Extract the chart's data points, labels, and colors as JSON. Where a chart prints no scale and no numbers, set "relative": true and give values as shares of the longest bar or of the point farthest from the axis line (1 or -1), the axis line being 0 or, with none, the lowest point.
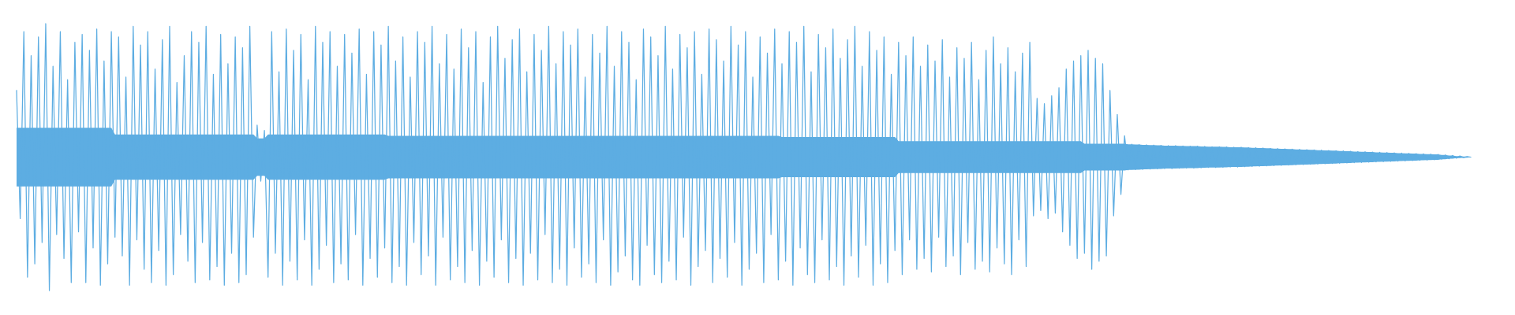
{
  "chart_data": {
    "type": "line",
    "relative": true,
    "categories": [
      null,
      null,
      null,
      null,
      null,
      null,
      null,
      null,
      null,
      null,
      null,
      null,
      null,
      null,
      null,
      null,
      null,
      null,
      null,
      null,
      null,
      null,
      null,
      null,
      null,
      null,
      null,
      null,
      null,
      null,
      null,
      null,
      null,
      null,
      null,
      null,
      null,
      null,
      null,
      null,
      null,
      null,
      null,
      null,
      null,
      null,
      null,
      null,
      null,
      null,
      null,
      null,
      null,
      null,
      null,
      null,
      null,
      null,
      null,
      null,
      null,
      null,
      null,
      null,
      null,
      null,
      null,
      null,
      null,
      null,
      null,
      null,
      null,
      null,
      null,
      null,
      null,
      null,
      null,
      null,
      null,
      null,
      null,
      null,
      null,
      null,
      null,
      null,
      null,
      null,
      null,
      null,
      null,
      null,
      null,
      null,
      null,
      null,
      null,
      null,
      null,
      null,
      null,
      null,
      null,
      null,
      null,
      null,
      null,
      null,
      null,
      null,
      null,
      null,
      null,
      null,
      null,
      null,
      null,
      null,
      null,
      null,
      null,
      null,
      null,
      null,
      null,
      null,
      null,
      null,
      null,
      null,
      null,
      null,
      null,
      null,
      null,
      null,
      null,
      null,
      null,
      null,
      null,
      null,
      null,
      null,
      null,
      null,
      null,
      null,
      null,
      null,
      null,
      null,
      null,
      null,
      null,
      null,
      null,
      null,
      null,
      null,
      null,
      null,
      null,
      null,
      null,
      null,
      null,
      null,
      null,
      null,
      null,
      null,
      null,
      null,
      null,
      null,
      null,
      null,
      null,
      null,
      null,
      null,
      null,
      null,
      null,
      null,
      null,
      null,
      null,
      null,
      null,
      null,
      null,
      null,
      null,
      null,
      null,
      null,
      null,
      null,
      null,
      null,
      null,
      null,
      null,
      null,
      null,
      null,
      null,
      null,
      null,
      null,
      null,
      null,
      null,
      null,
      null,
      null,
      null,
      null,
      null,
      null,
      null,
      null,
      null,
      null,
      null,
      null,
      null,
      null,
      null,
      null,
      null,
      null,
      null,
      null,
      null,
      null,
      null,
      null,
      null,
      null,
      null,
      null,
      null,
      null,
      null,
      null,
      null,
      null,
      null,
      null,
      null,
      null,
      null,
      null,
      null,
      null,
      null,
      null,
      null,
      null,
      null,
      null,
      null,
      null,
      null,
      null,
      null,
      null,
      null,
      null,
      null,
      null,
      null,
      null,
      null,
      null,
      null,
      null,
      null,
      null,
      null,
      null,
      null,
      null,
      null,
      null,
      null,
      null,
      null,
      null,
      null,
      null,
      null,
      null,
      null,
      null,
      null,
      null,
      null,
      null,
      null,
      null,
      null,
      null,
      null,
      null,
      null,
      null,
      null,
      null,
      null,
      null,
      null,
      null,
      null,
      null,
      null,
      null,
      null,
      null,
      null,
      null,
      null,
      null,
      null,
      null,
      null,
      null,
      null,
      null,
      null,
      null,
      null,
      null,
      null,
      null,
      null,
      null,
      null,
      null,
      null,
      null,
      null,
      null,
      null,
      null,
      null,
      null,
      null,
      null,
      null,
      null,
      null,
      null,
      null,
      null,
      null,
      null,
      null,
      null,
      null,
      null,
      null,
      null,
      null,
      null,
      null,
      null,
      null,
      null,
      null,
      null,
      null,
      null,
      null,
      null,
      null,
      null,
      null,
      null,
      null,
      null,
      null,
      null,
      null,
      null,
      null,
      null,
      null,
      null,
      null,
      null,
      null,
      null,
      null,
      null
    ],
    "series": [
      {
        "color": "#5dade2",
        "values": [
          0.75,
          0.27,
          0.97,
          0.05,
          0.88,
          0.1,
          0.95,
          0.18,
          1.0,
          0.0,
          0.84,
          0.21,
          0.97,
          0.12,
          0.79,
          0.03,
          0.93,
          0.22,
          0.96,
          0.03,
          0.9,
          0.16,
          0.98,
          0.02,
          0.86,
          0.1,
          0.97,
          0.2,
          0.95,
          0.13,
          0.8,
          0.02,
          0.99,
          0.19,
          0.92,
          0.08,
          0.97,
          0.03,
          0.83,
          0.15,
          0.94,
          0.02,
          0.99,
          0.06,
          0.78,
          0.21,
          0.88,
          0.11,
          0.97,
          0.03,
          0.93,
          0.18,
          0.99,
          0.04,
          0.81,
          0.09,
          0.96,
          0.02,
          0.85,
          0.14,
          0.95,
          0.03,
          0.91,
          0.06,
          0.99,
          0.2,
          0.62,
          0.41,
          0.6,
          0.05,
          0.97,
          0.14,
          0.82,
          0.02,
          0.98,
          0.11,
          0.9,
          0.04,
          0.96,
          0.19,
          0.79,
          0.02,
          0.99,
          0.08,
          0.93,
          0.17,
          0.97,
          0.03,
          0.84,
          0.1,
          0.96,
          0.04,
          0.89,
          0.21,
          0.98,
          0.02,
          0.81,
          0.12,
          0.97,
          0.05,
          0.92,
          0.16,
          0.99,
          0.03,
          0.86,
          0.09,
          0.95,
          0.02,
          0.8,
          0.18,
          0.97,
          0.06,
          0.93,
          0.13,
          0.99,
          0.02,
          0.85,
          0.2,
          0.96,
          0.04,
          0.83,
          0.09,
          0.98,
          0.03,
          0.91,
          0.15,
          0.97,
          0.02,
          0.78,
          0.11,
          0.95,
          0.05,
          0.99,
          0.19,
          0.87,
          0.03,
          0.94,
          0.12,
          0.98,
          0.02,
          0.82,
          0.14,
          0.96,
          0.04,
          0.9,
          0.21,
          0.99,
          0.03,
          0.85,
          0.08,
          0.97,
          0.02,
          0.92,
          0.16,
          0.98,
          0.05,
          0.8,
          0.1,
          0.96,
          0.03,
          0.89,
          0.19,
          0.99,
          0.02,
          0.84,
          0.07,
          0.97,
          0.13,
          0.93,
          0.04,
          0.79,
          0.02,
          0.98,
          0.17,
          0.95,
          0.06,
          0.88,
          0.03,
          0.99,
          0.11,
          0.83,
          0.04,
          0.96,
          0.2,
          0.91,
          0.02,
          0.97,
          0.09,
          0.81,
          0.15,
          0.98,
          0.03,
          0.94,
          0.12,
          0.86,
          0.05,
          0.99,
          0.18,
          0.92,
          0.02,
          0.97,
          0.08,
          0.8,
          0.14,
          0.95,
          0.03,
          0.89,
          0.21,
          0.98,
          0.04,
          0.85,
          0.11,
          0.97,
          0.02,
          0.93,
          0.16,
          0.99,
          0.06,
          0.82,
          0.03,
          0.96,
          0.19,
          0.91,
          0.04,
          0.98,
          0.09,
          0.87,
          0.02,
          0.94,
          0.13,
          0.99,
          0.05,
          0.84,
          0.17,
          0.97,
          0.02,
          0.9,
          0.1,
          0.95,
          0.03,
          0.81,
          0.15,
          0.93,
          0.06,
          0.88,
          0.19,
          0.95,
          0.08,
          0.84,
          0.12,
          0.92,
          0.07,
          0.86,
          0.2,
          0.94,
          0.09,
          0.8,
          0.13,
          0.91,
          0.06,
          0.87,
          0.18,
          0.93,
          0.08,
          0.79,
          0.11,
          0.9,
          0.07,
          0.95,
          0.16,
          0.85,
          0.1,
          0.91,
          0.06,
          0.82,
          0.19,
          0.89,
          0.09,
          0.93,
          0.28,
          0.72,
          0.3,
          0.7,
          0.27,
          0.73,
          0.29,
          0.76,
          0.22,
          0.83,
          0.17,
          0.86,
          0.12,
          0.88,
          0.14,
          0.9,
          0.08,
          0.87,
          0.11,
          0.85,
          0.13,
          0.75,
          0.28,
          0.66,
          0.36,
          0.58,
          0.452,
          0.548,
          0.453,
          0.547,
          0.454,
          0.546,
          0.455,
          0.545,
          0.456,
          0.544,
          0.457,
          0.543,
          0.457,
          0.543,
          0.458,
          0.542,
          0.459,
          0.541,
          0.459,
          0.541,
          0.46,
          0.54,
          0.461,
          0.539,
          0.461,
          0.539,
          0.462,
          0.538,
          0.463,
          0.537,
          0.463,
          0.537,
          0.464,
          0.536,
          0.465,
          0.535,
          0.466,
          0.534,
          0.467,
          0.533,
          0.468,
          0.532,
          0.469,
          0.531,
          0.47,
          0.53,
          0.471,
          0.529,
          0.472,
          0.528,
          0.473,
          0.527,
          0.474,
          0.526,
          0.475,
          0.525,
          0.476,
          0.524,
          0.477,
          0.523,
          0.478,
          0.522,
          0.479,
          0.521,
          0.48,
          0.52,
          0.481,
          0.519,
          0.482,
          0.518,
          0.483,
          0.517,
          0.484,
          0.516,
          0.485,
          0.515,
          0.486,
          0.514,
          0.487,
          0.513,
          0.488,
          0.512,
          0.489,
          0.511,
          0.49,
          0.51,
          0.492,
          0.508,
          0.494,
          0.506,
          0.496,
          0.504,
          0.498,
          0.502,
          0.5
        ],
        "lower": [
          0.39,
          0.39,
          0.39,
          0.39,
          0.39,
          0.39,
          0.39,
          0.39,
          0.39,
          0.39,
          0.39,
          0.39,
          0.39,
          0.39,
          0.39,
          0.39,
          0.39,
          0.39,
          0.39,
          0.39,
          0.39,
          0.39,
          0.39,
          0.39,
          0.39,
          0.39,
          0.39,
          0.415,
          0.415,
          0.415,
          0.415,
          0.415,
          0.415,
          0.415,
          0.415,
          0.415,
          0.415,
          0.415,
          0.415,
          0.415,
          0.415,
          0.415,
          0.415,
          0.415,
          0.415,
          0.415,
          0.415,
          0.415,
          0.415,
          0.415,
          0.415,
          0.415,
          0.415,
          0.415,
          0.415,
          0.415,
          0.415,
          0.415,
          0.415,
          0.415,
          0.415,
          0.415,
          0.415,
          0.415,
          0.415,
          0.415,
          0.43,
          0.43,
          0.43,
          0.415,
          0.415,
          0.415,
          0.415,
          0.415,
          0.415,
          0.415,
          0.415,
          0.415,
          0.415,
          0.415,
          0.415,
          0.415,
          0.415,
          0.415,
          0.415,
          0.415,
          0.415,
          0.415,
          0.415,
          0.415,
          0.415,
          0.415,
          0.415,
          0.415,
          0.415,
          0.415,
          0.415,
          0.415,
          0.415,
          0.415,
          0.415,
          0.415,
          0.42,
          0.42,
          0.42,
          0.42,
          0.42,
          0.42,
          0.42,
          0.42,
          0.42,
          0.42,
          0.42,
          0.42,
          0.42,
          0.42,
          0.42,
          0.42,
          0.42,
          0.42,
          0.42,
          0.42,
          0.42,
          0.42,
          0.42,
          0.42,
          0.42,
          0.42,
          0.42,
          0.42,
          0.42,
          0.42,
          0.42,
          0.42,
          0.42,
          0.42,
          0.42,
          0.42,
          0.42,
          0.42,
          0.42,
          0.42,
          0.42,
          0.42,
          0.42,
          0.42,
          0.42,
          0.42,
          0.42,
          0.42,
          0.42,
          0.42,
          0.42,
          0.42,
          0.42,
          0.42,
          0.42,
          0.42,
          0.42,
          0.42,
          0.42,
          0.42,
          0.42,
          0.42,
          0.42,
          0.42,
          0.42,
          0.42,
          0.42,
          0.42,
          0.42,
          0.42,
          0.42,
          0.42,
          0.42,
          0.42,
          0.42,
          0.42,
          0.42,
          0.42,
          0.42,
          0.42,
          0.42,
          0.42,
          0.42,
          0.42,
          0.42,
          0.42,
          0.42,
          0.42,
          0.42,
          0.42,
          0.42,
          0.42,
          0.42,
          0.42,
          0.42,
          0.42,
          0.42,
          0.42,
          0.42,
          0.42,
          0.42,
          0.42,
          0.42,
          0.42,
          0.42,
          0.42,
          0.42,
          0.42,
          0.425,
          0.425,
          0.425,
          0.425,
          0.425,
          0.425,
          0.425,
          0.425,
          0.425,
          0.425,
          0.425,
          0.425,
          0.425,
          0.425,
          0.425,
          0.425,
          0.425,
          0.425,
          0.425,
          0.425,
          0.425,
          0.425,
          0.425,
          0.425,
          0.425,
          0.425,
          0.425,
          0.425,
          0.425,
          0.425,
          0.425,
          0.425,
          0.44,
          0.44,
          0.44,
          0.44,
          0.44,
          0.44,
          0.44,
          0.44,
          0.44,
          0.44,
          0.44,
          0.44,
          0.44,
          0.44,
          0.44,
          0.44,
          0.44,
          0.44,
          0.44,
          0.44,
          0.44,
          0.44,
          0.44,
          0.44,
          0.44,
          0.44,
          0.44,
          0.44,
          0.44,
          0.44,
          0.44,
          0.44,
          0.44,
          0.44,
          0.44,
          0.44,
          0.44,
          0.44,
          0.44,
          0.44,
          0.44,
          0.44,
          0.44,
          0.44,
          0.44,
          0.44,
          0.44,
          0.44,
          0.44,
          0.44,
          0.44,
          0.45,
          0.45,
          0.45,
          0.45,
          0.45,
          0.45,
          0.45,
          0.45,
          0.45,
          0.45,
          0.45,
          0.45,
          0.452,
          0.452,
          0.453,
          0.453,
          0.454,
          0.454,
          0.455,
          0.455,
          0.456,
          0.456,
          0.457,
          0.457,
          0.457,
          0.457,
          0.458,
          0.458,
          0.459,
          0.459,
          0.459,
          0.459,
          0.46,
          0.46,
          0.461,
          0.461,
          0.461,
          0.461,
          0.462,
          0.462,
          0.463,
          0.463,
          0.463,
          0.463,
          0.464,
          0.464,
          0.465,
          0.465,
          0.466,
          0.466,
          0.467,
          0.467,
          0.468,
          0.468,
          0.469,
          0.469,
          0.47,
          0.47,
          0.471,
          0.471,
          0.472,
          0.472,
          0.473,
          0.473,
          0.474,
          0.474,
          0.475,
          0.475,
          0.476,
          0.476,
          0.477,
          0.477,
          0.478,
          0.478,
          0.479,
          0.479,
          0.48,
          0.48,
          0.481,
          0.481,
          0.482,
          0.482,
          0.483,
          0.483,
          0.484,
          0.484,
          0.485,
          0.485,
          0.486,
          0.486,
          0.487,
          0.487,
          0.488,
          0.488,
          0.489,
          0.489,
          0.49,
          0.49,
          0.492,
          0.492,
          0.494,
          0.494,
          0.496,
          0.496,
          0.498,
          0.498,
          0.5
        ],
        "upper": [
          0.61,
          0.61,
          0.61,
          0.61,
          0.61,
          0.61,
          0.61,
          0.61,
          0.61,
          0.61,
          0.61,
          0.61,
          0.61,
          0.61,
          0.61,
          0.61,
          0.61,
          0.61,
          0.61,
          0.61,
          0.61,
          0.61,
          0.61,
          0.61,
          0.61,
          0.61,
          0.61,
          0.585,
          0.585,
          0.585,
          0.585,
          0.585,
          0.585,
          0.585,
          0.585,
          0.585,
          0.585,
          0.585,
          0.585,
          0.585,
          0.585,
          0.585,
          0.585,
          0.585,
          0.585,
          0.585,
          0.585,
          0.585,
          0.585,
          0.585,
          0.585,
          0.585,
          0.585,
          0.585,
          0.585,
          0.585,
          0.585,
          0.585,
          0.585,
          0.585,
          0.585,
          0.585,
          0.585,
          0.585,
          0.585,
          0.585,
          0.57,
          0.57,
          0.57,
          0.585,
          0.585,
          0.585,
          0.585,
          0.585,
          0.585,
          0.585,
          0.585,
          0.585,
          0.585,
          0.585,
          0.585,
          0.585,
          0.585,
          0.585,
          0.585,
          0.585,
          0.585,
          0.585,
          0.585,
          0.585,
          0.585,
          0.585,
          0.585,
          0.585,
          0.585,
          0.585,
          0.585,
          0.585,
          0.585,
          0.585,
          0.585,
          0.585,
          0.58,
          0.58,
          0.58,
          0.58,
          0.58,
          0.58,
          0.58,
          0.58,
          0.58,
          0.58,
          0.58,
          0.58,
          0.58,
          0.58,
          0.58,
          0.58,
          0.58,
          0.58,
          0.58,
          0.58,
          0.58,
          0.58,
          0.58,
          0.58,
          0.58,
          0.58,
          0.58,
          0.58,
          0.58,
          0.58,
          0.58,
          0.58,
          0.58,
          0.58,
          0.58,
          0.58,
          0.58,
          0.58,
          0.58,
          0.58,
          0.58,
          0.58,
          0.58,
          0.58,
          0.58,
          0.58,
          0.58,
          0.58,
          0.58,
          0.58,
          0.58,
          0.58,
          0.58,
          0.58,
          0.58,
          0.58,
          0.58,
          0.58,
          0.58,
          0.58,
          0.58,
          0.58,
          0.58,
          0.58,
          0.58,
          0.58,
          0.58,
          0.58,
          0.58,
          0.58,
          0.58,
          0.58,
          0.58,
          0.58,
          0.58,
          0.58,
          0.58,
          0.58,
          0.58,
          0.58,
          0.58,
          0.58,
          0.58,
          0.58,
          0.58,
          0.58,
          0.58,
          0.58,
          0.58,
          0.58,
          0.58,
          0.58,
          0.58,
          0.58,
          0.58,
          0.58,
          0.58,
          0.58,
          0.58,
          0.58,
          0.58,
          0.58,
          0.58,
          0.58,
          0.58,
          0.58,
          0.58,
          0.58,
          0.575,
          0.575,
          0.575,
          0.575,
          0.575,
          0.575,
          0.575,
          0.575,
          0.575,
          0.575,
          0.575,
          0.575,
          0.575,
          0.575,
          0.575,
          0.575,
          0.575,
          0.575,
          0.575,
          0.575,
          0.575,
          0.575,
          0.575,
          0.575,
          0.575,
          0.575,
          0.575,
          0.575,
          0.575,
          0.575,
          0.575,
          0.575,
          0.56,
          0.56,
          0.56,
          0.56,
          0.56,
          0.56,
          0.56,
          0.56,
          0.56,
          0.56,
          0.56,
          0.56,
          0.56,
          0.56,
          0.56,
          0.56,
          0.56,
          0.56,
          0.56,
          0.56,
          0.56,
          0.56,
          0.56,
          0.56,
          0.56,
          0.56,
          0.56,
          0.56,
          0.56,
          0.56,
          0.56,
          0.56,
          0.56,
          0.56,
          0.56,
          0.56,
          0.56,
          0.56,
          0.56,
          0.56,
          0.56,
          0.56,
          0.56,
          0.56,
          0.56,
          0.56,
          0.56,
          0.56,
          0.56,
          0.56,
          0.56,
          0.55,
          0.55,
          0.55,
          0.55,
          0.55,
          0.55,
          0.55,
          0.55,
          0.55,
          0.55,
          0.55,
          0.55,
          0.548,
          0.548,
          0.547,
          0.547,
          0.546,
          0.546,
          0.545,
          0.545,
          0.544,
          0.544,
          0.543,
          0.543,
          0.543,
          0.543,
          0.542,
          0.542,
          0.541,
          0.541,
          0.541,
          0.541,
          0.54,
          0.54,
          0.539,
          0.539,
          0.539,
          0.539,
          0.538,
          0.538,
          0.537,
          0.537,
          0.537,
          0.537,
          0.536,
          0.536,
          0.535,
          0.535,
          0.534,
          0.534,
          0.533,
          0.533,
          0.532,
          0.532,
          0.531,
          0.531,
          0.53,
          0.53,
          0.529,
          0.529,
          0.528,
          0.528,
          0.527,
          0.527,
          0.526,
          0.526,
          0.525,
          0.525,
          0.524,
          0.524,
          0.523,
          0.523,
          0.522,
          0.522,
          0.521,
          0.521,
          0.52,
          0.52,
          0.519,
          0.519,
          0.518,
          0.518,
          0.517,
          0.517,
          0.516,
          0.516,
          0.515,
          0.515,
          0.514,
          0.514,
          0.513,
          0.513,
          0.512,
          0.512,
          0.511,
          0.511,
          0.51,
          0.51,
          0.508,
          0.508,
          0.506,
          0.506,
          0.504,
          0.504,
          0.502,
          0.502,
          0.5
        ]
      }
    ]
  }
}
